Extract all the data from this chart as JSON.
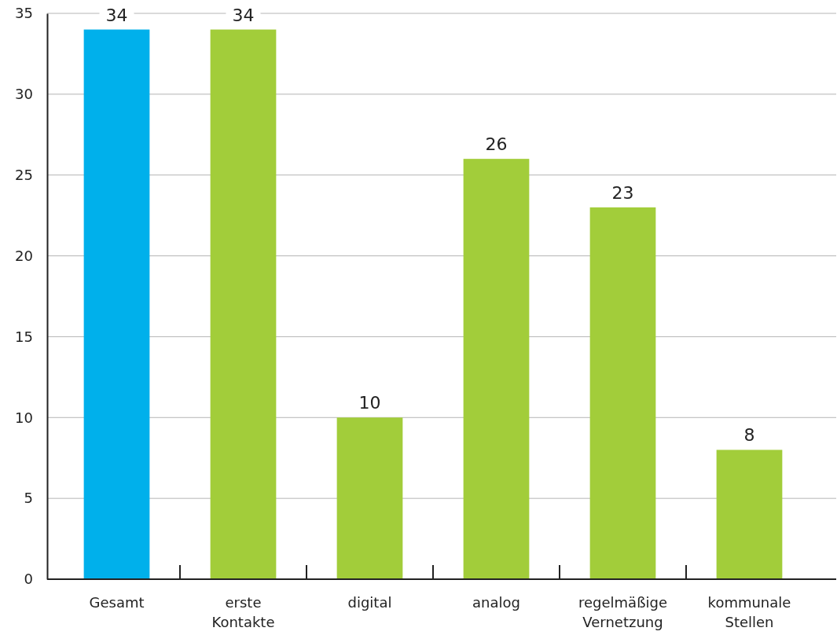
{
  "chart_data": {
    "type": "bar",
    "categories": [
      "Gesamt",
      "erste Kontakte",
      "digital",
      "analog",
      "regelmäßige Vernetzung",
      "kommunale Stellen"
    ],
    "values": [
      34,
      34,
      10,
      26,
      23,
      8
    ],
    "colors": [
      "#00b0eb",
      "#a2cd3a",
      "#a2cd3a",
      "#a2cd3a",
      "#a2cd3a",
      "#a2cd3a"
    ],
    "ylim": [
      0,
      35
    ],
    "yticks": [
      0,
      5,
      10,
      15,
      20,
      25,
      30,
      35
    ],
    "grid": "y",
    "data_labels": true
  }
}
